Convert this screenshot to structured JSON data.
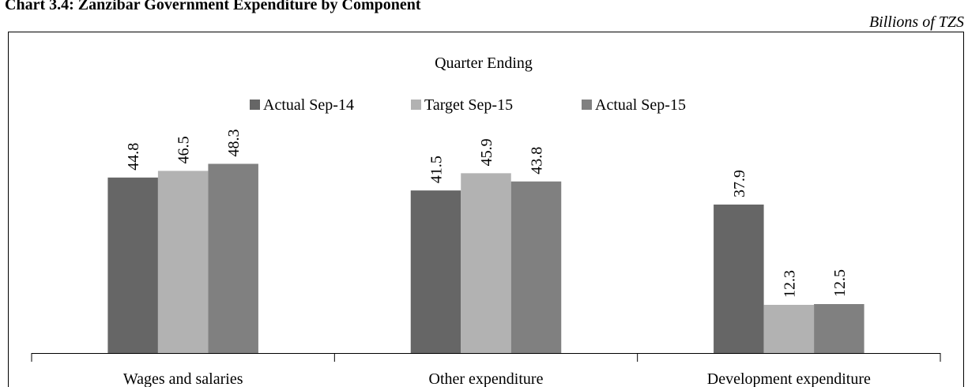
{
  "chart_data": {
    "type": "bar",
    "title": "Chart 3.4: Zanzibar Government Expenditure by Component",
    "subtitle": "Billions of TZS",
    "legend_title": "Quarter Ending",
    "categories": [
      "Wages and salaries",
      "Other expenditure",
      "Development expenditure"
    ],
    "series": [
      {
        "name": "Actual Sep-14",
        "color": "#666666",
        "values": [
          44.8,
          41.5,
          37.9
        ]
      },
      {
        "name": "Target Sep-15",
        "color": "#b2b2b2",
        "values": [
          46.5,
          45.9,
          12.3
        ]
      },
      {
        "name": "Actual Sep-15",
        "color": "#808080",
        "values": [
          48.3,
          43.8,
          12.5
        ]
      }
    ],
    "legend": "top"
  }
}
